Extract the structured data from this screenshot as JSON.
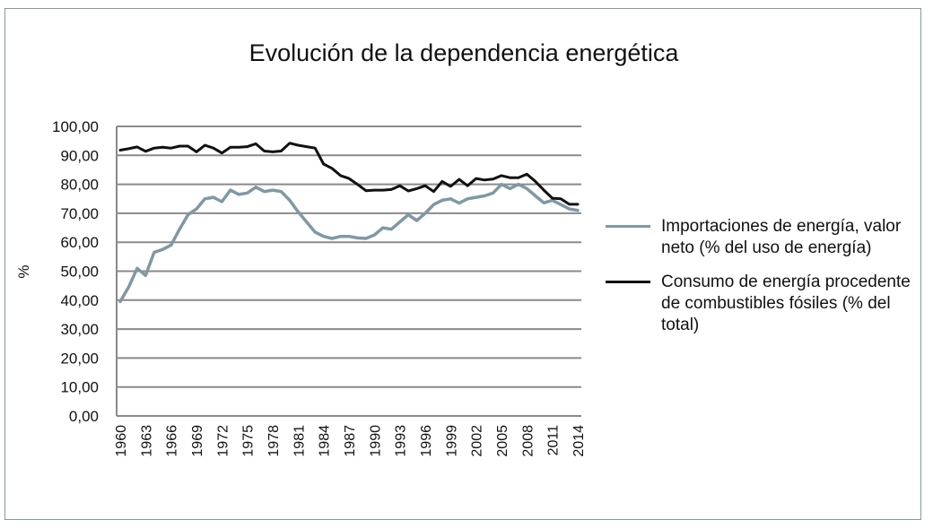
{
  "chart_data": {
    "type": "line",
    "title": "Evolución de la dependencia energética",
    "xlabel": "",
    "ylabel": "%",
    "ylim": [
      0,
      100
    ],
    "xlim": [
      1960,
      2014
    ],
    "grid": true,
    "legend_position": "right",
    "y_ticks": [
      "0,00",
      "10,00",
      "20,00",
      "30,00",
      "40,00",
      "50,00",
      "60,00",
      "70,00",
      "80,00",
      "90,00",
      "100,00"
    ],
    "x_ticks": [
      "1960",
      "1963",
      "1966",
      "1969",
      "1972",
      "1975",
      "1978",
      "1981",
      "1984",
      "1987",
      "1990",
      "1993",
      "1996",
      "1999",
      "2002",
      "2005",
      "2008",
      "2011",
      "2014"
    ],
    "x": [
      1960,
      1961,
      1962,
      1963,
      1964,
      1965,
      1966,
      1967,
      1968,
      1969,
      1970,
      1971,
      1972,
      1973,
      1974,
      1975,
      1976,
      1977,
      1978,
      1979,
      1980,
      1981,
      1982,
      1983,
      1984,
      1985,
      1986,
      1987,
      1988,
      1989,
      1990,
      1991,
      1992,
      1993,
      1994,
      1995,
      1996,
      1997,
      1998,
      1999,
      2000,
      2001,
      2002,
      2003,
      2004,
      2005,
      2006,
      2007,
      2008,
      2009,
      2010,
      2011,
      2012,
      2013,
      2014
    ],
    "series": [
      {
        "name": "Importaciones de energía, valor neto (% del uso de energía)",
        "color": "#7f98a4",
        "values": [
          39.5,
          44.5,
          51,
          48.5,
          56.5,
          57.5,
          59,
          64.5,
          69.5,
          71.5,
          75,
          75.5,
          74,
          78,
          76.5,
          77,
          79,
          77.5,
          78,
          77.5,
          74.5,
          70.5,
          67,
          63.5,
          62,
          61.3,
          62,
          62,
          61.5,
          61.3,
          62.5,
          65,
          64.5,
          67,
          69.5,
          67.5,
          70,
          73,
          74.5,
          75,
          73.5,
          75,
          75.5,
          76,
          77,
          80,
          78.5,
          80,
          78.5,
          76,
          73.6,
          74.5,
          73,
          71.5,
          71
        ]
      },
      {
        "name": "Consumo de energía procedente de combustibles fósiles (% del total)",
        "color": "#111111",
        "values": [
          91.8,
          92.3,
          92.9,
          91.4,
          92.5,
          92.8,
          92.5,
          93.2,
          93.2,
          91.2,
          93.5,
          92.5,
          90.8,
          92.8,
          92.8,
          93,
          94,
          91.5,
          91.2,
          91.5,
          94.2,
          93.5,
          93,
          92.5,
          87,
          85.5,
          83,
          82,
          80,
          77.8,
          78,
          78,
          78.2,
          79.5,
          77.7,
          78.5,
          79.5,
          77.5,
          81,
          79.3,
          81.7,
          79.5,
          82,
          81.5,
          81.8,
          83,
          82.3,
          82.3,
          83.5,
          81,
          78,
          75.2,
          75,
          73.1,
          73.1
        ]
      }
    ]
  },
  "legend": {
    "items": [
      {
        "label": "Importaciones de energía, valor neto (% del uso de energía)",
        "color": "#7f98a4"
      },
      {
        "label": "Consumo de energía procedente de combustibles fósiles (% del total)",
        "color": "#111111"
      }
    ]
  }
}
